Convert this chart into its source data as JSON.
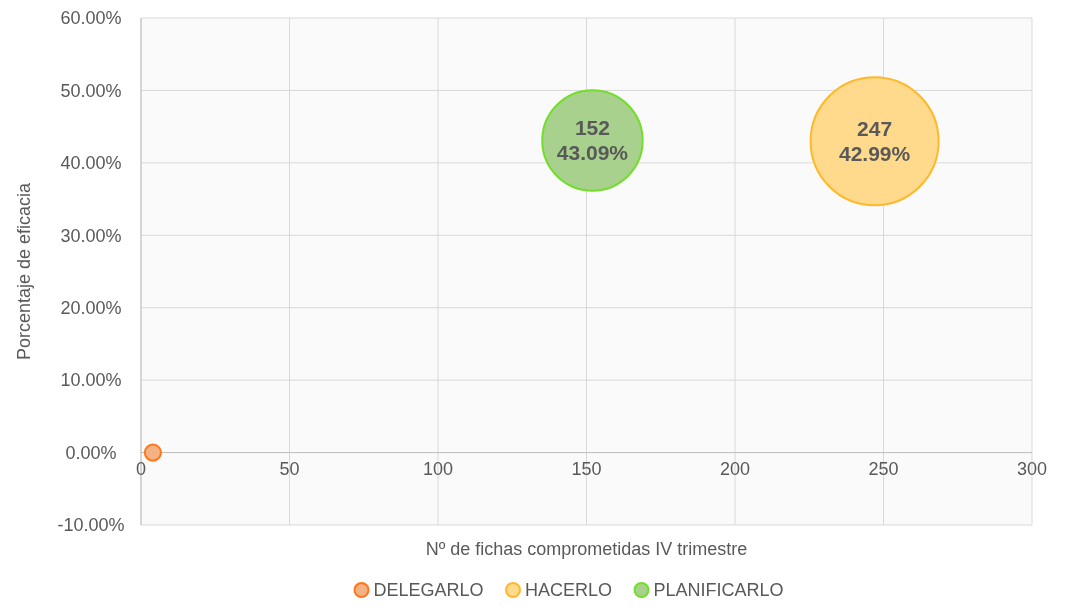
{
  "chart_data": {
    "type": "bubble",
    "xlabel": "Nº de fichas comprometidas IV trimestre",
    "ylabel": "Porcentaje de eficacia",
    "xlim": [
      0,
      300
    ],
    "xticks": [
      0,
      50,
      100,
      150,
      200,
      250,
      300
    ],
    "ylim": [
      -10,
      60
    ],
    "yticks": [
      {
        "value": -10,
        "label": "-10.00%"
      },
      {
        "value": 0,
        "label": "0.00%"
      },
      {
        "value": 10,
        "label": "10.00%"
      },
      {
        "value": 20,
        "label": "20.00%"
      },
      {
        "value": 30,
        "label": "30.00%"
      },
      {
        "value": 40,
        "label": "40.00%"
      },
      {
        "value": 50,
        "label": "50.00%"
      },
      {
        "value": 60,
        "label": "60.00%"
      }
    ],
    "grid": true,
    "legend": "bottom",
    "series": [
      {
        "name": "DELEGARLO",
        "color": "#f4b183",
        "x": [
          4
        ],
        "values": [
          0
        ],
        "sizes": [
          0.016
        ]
      },
      {
        "name": "HACERLO",
        "color": "#ffd98c",
        "x": [
          247
        ],
        "values": [
          42.99
        ],
        "sizes": [
          1
        ],
        "value_labels": [
          "247\n42.99%"
        ]
      },
      {
        "name": "PLANIFICARLO",
        "color": "#a9d18e",
        "x": [
          152
        ],
        "values": [
          43.09
        ],
        "sizes": [
          0.615
        ],
        "value_labels": [
          "152\n43.09%"
        ]
      }
    ]
  }
}
